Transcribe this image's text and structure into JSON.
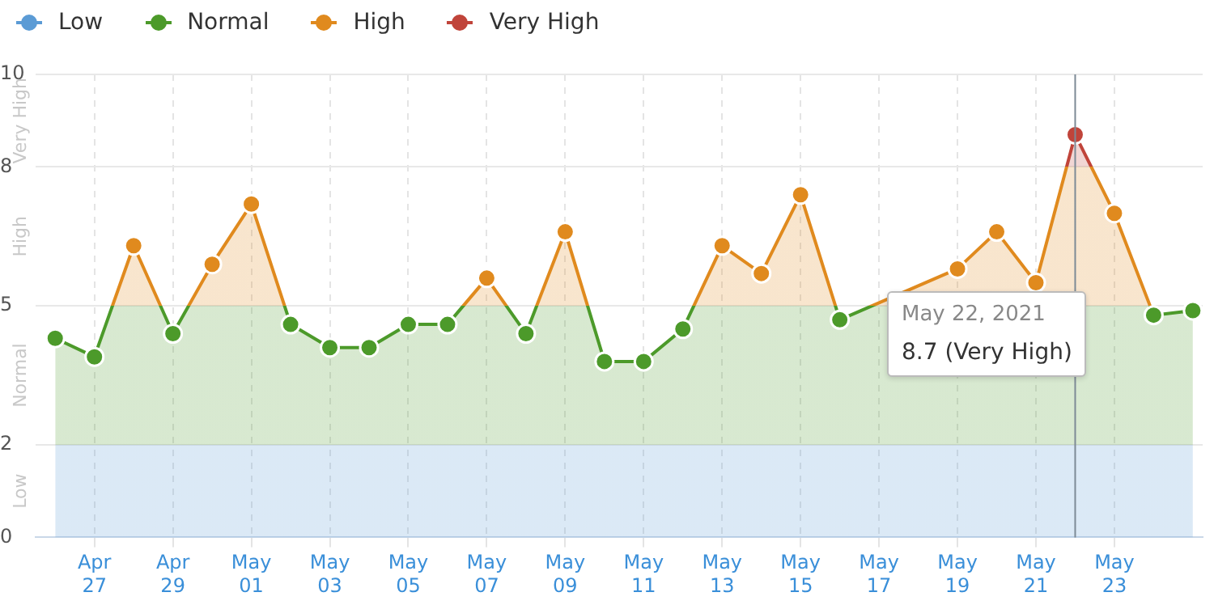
{
  "chart_data": {
    "type": "area",
    "x": [
      "2021-04-26",
      "2021-04-27",
      "2021-04-28",
      "2021-04-29",
      "2021-04-30",
      "2021-05-01",
      "2021-05-02",
      "2021-05-03",
      "2021-05-04",
      "2021-05-05",
      "2021-05-06",
      "2021-05-07",
      "2021-05-08",
      "2021-05-09",
      "2021-05-10",
      "2021-05-11",
      "2021-05-12",
      "2021-05-13",
      "2021-05-14",
      "2021-05-15",
      "2021-05-16",
      "2021-05-17",
      "2021-05-18",
      "2021-05-19",
      "2021-05-20",
      "2021-05-21",
      "2021-05-22",
      "2021-05-23",
      "2021-05-24",
      "2021-05-25"
    ],
    "series": [
      {
        "marker": "none",
        "values": [
          4.3,
          3.9,
          6.3,
          4.4,
          5.9,
          7.2,
          4.6,
          4.1,
          4.1,
          4.6,
          4.6,
          5.6,
          4.4,
          6.6,
          3.8,
          3.8,
          4.5,
          6.3,
          5.7,
          7.4,
          4.7,
          null,
          null,
          5.8,
          6.6,
          5.5,
          8.7,
          7.0,
          4.8,
          4.9
        ]
      },
      {
        "type": "scatter",
        "name": "Low",
        "color": "#5b9bd5",
        "values": [
          null,
          null,
          null,
          null,
          null,
          null,
          null,
          null,
          null,
          null,
          null,
          null,
          null,
          null,
          null,
          null,
          null,
          null,
          null,
          null,
          null,
          null,
          null,
          null,
          null,
          null,
          null,
          null,
          null,
          null
        ]
      },
      {
        "type": "scatter",
        "name": "Normal",
        "color": "#4c9a2a",
        "values": [
          4.3,
          3.9,
          null,
          4.4,
          null,
          null,
          4.6,
          4.1,
          4.1,
          4.6,
          4.6,
          null,
          4.4,
          null,
          3.8,
          3.8,
          4.5,
          null,
          null,
          null,
          4.7,
          null,
          null,
          null,
          null,
          null,
          null,
          null,
          4.8,
          4.9
        ]
      },
      {
        "type": "scatter",
        "name": "High",
        "color": "#e08a1e",
        "values": [
          null,
          null,
          6.3,
          null,
          5.9,
          7.2,
          null,
          null,
          null,
          null,
          null,
          5.6,
          null,
          6.6,
          null,
          null,
          null,
          6.3,
          5.7,
          7.4,
          null,
          null,
          null,
          5.8,
          6.6,
          5.5,
          null,
          7.0,
          null,
          null
        ]
      },
      {
        "type": "scatter",
        "name": "Very High",
        "color": "#c0443a",
        "values": [
          null,
          null,
          null,
          null,
          null,
          null,
          null,
          null,
          null,
          null,
          null,
          null,
          null,
          null,
          null,
          null,
          null,
          null,
          null,
          null,
          null,
          null,
          null,
          null,
          null,
          null,
          8.7,
          null,
          null,
          null
        ]
      }
    ],
    "xlim": [
      "2021-04-25T12:00",
      "2021-05-25T06:00"
    ],
    "xticks": [
      {
        "value": "2021-04-27",
        "label": "Apr 27"
      },
      {
        "value": "2021-04-29",
        "label": "Apr 29"
      },
      {
        "value": "2021-05-01",
        "label": "May 01"
      },
      {
        "value": "2021-05-03",
        "label": "May 03"
      },
      {
        "value": "2021-05-05",
        "label": "May 05"
      },
      {
        "value": "2021-05-07",
        "label": "May 07"
      },
      {
        "value": "2021-05-09",
        "label": "May 09"
      },
      {
        "value": "2021-05-11",
        "label": "May 11"
      },
      {
        "value": "2021-05-13",
        "label": "May 13"
      },
      {
        "value": "2021-05-15",
        "label": "May 15"
      },
      {
        "value": "2021-05-17",
        "label": "May 17"
      },
      {
        "value": "2021-05-19",
        "label": "May 19"
      },
      {
        "value": "2021-05-21",
        "label": "May 21"
      },
      {
        "value": "2021-05-23",
        "label": "May 23"
      }
    ],
    "ylim": [
      0,
      10
    ],
    "yticks": [
      0,
      2,
      5,
      8,
      10
    ],
    "ref_lines": [
      {
        "axis": "x",
        "value": "2021-05-22",
        "label": null,
        "color": "#7d8a96"
      }
    ],
    "annotations": [
      "May 22, 2021\n8.7 (Very High)"
    ],
    "grid": true,
    "legend": "top left",
    "marker": "circle",
    "line_style": "solid"
  }
}
